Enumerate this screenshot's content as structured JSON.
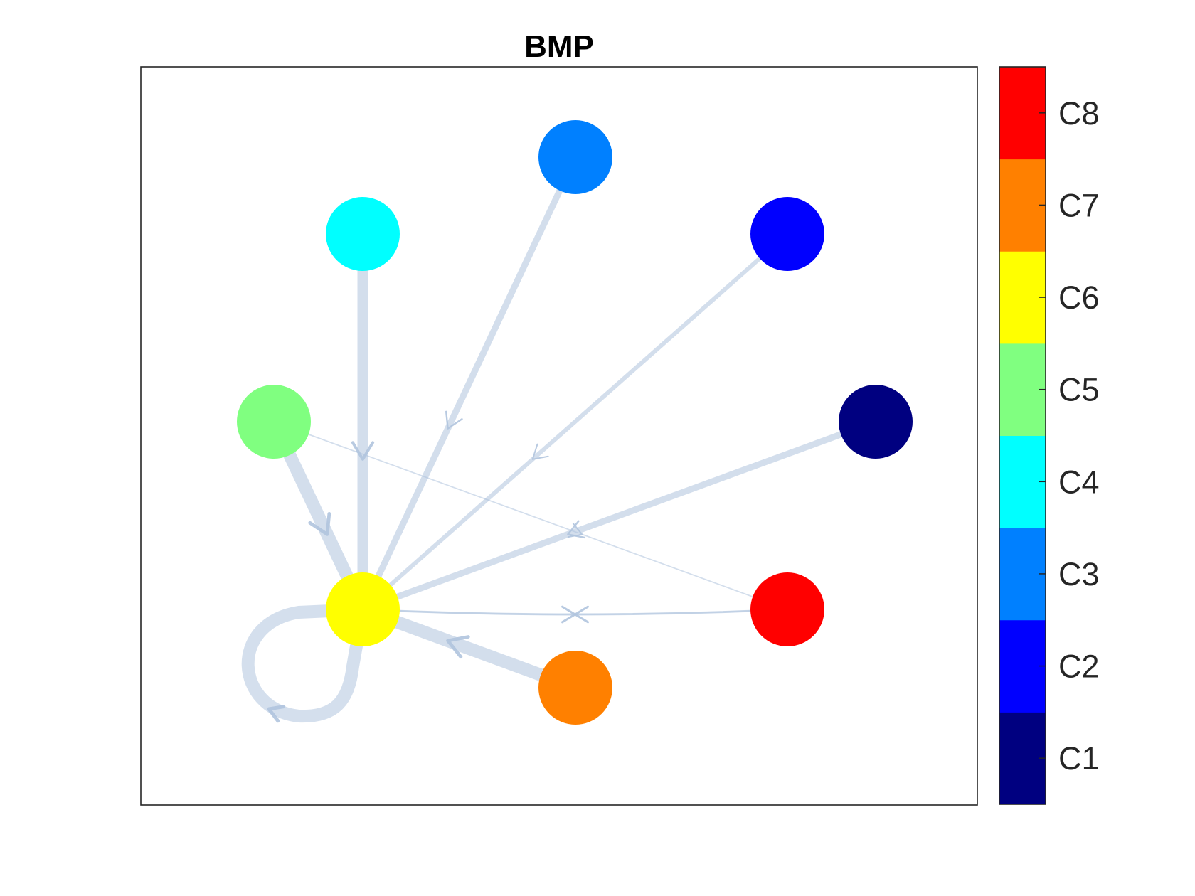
{
  "title": "BMP",
  "edge_color": "#b0c4de",
  "nodes": [
    {
      "id": "C1",
      "color": "#000080"
    },
    {
      "id": "C2",
      "color": "#0000ff"
    },
    {
      "id": "C3",
      "color": "#0080ff"
    },
    {
      "id": "C4",
      "color": "#00ffff"
    },
    {
      "id": "C5",
      "color": "#80ff80"
    },
    {
      "id": "C6",
      "color": "#ffff00"
    },
    {
      "id": "C7",
      "color": "#ff8000"
    },
    {
      "id": "C8",
      "color": "#ff0000"
    }
  ],
  "edges": [
    {
      "source": "C1",
      "target": "C6",
      "weight": 3
    },
    {
      "source": "C2",
      "target": "C6",
      "weight": 2
    },
    {
      "source": "C3",
      "target": "C6",
      "weight": 3
    },
    {
      "source": "C4",
      "target": "C6",
      "weight": 5
    },
    {
      "source": "C5",
      "target": "C6",
      "weight": 6
    },
    {
      "source": "C5",
      "target": "C8",
      "weight": 0.6
    },
    {
      "source": "C6",
      "target": "C6",
      "weight": 6
    },
    {
      "source": "C6",
      "target": "C8",
      "weight": 0.8
    },
    {
      "source": "C7",
      "target": "C6",
      "weight": 6
    },
    {
      "source": "C8",
      "target": "C6",
      "weight": 1
    }
  ],
  "colorbar": {
    "labels": [
      "C1",
      "C2",
      "C3",
      "C4",
      "C5",
      "C6",
      "C7",
      "C8"
    ],
    "colors": [
      "#000080",
      "#0000ff",
      "#0080ff",
      "#00ffff",
      "#80ff80",
      "#ffff00",
      "#ff8000",
      "#ff0000"
    ]
  }
}
